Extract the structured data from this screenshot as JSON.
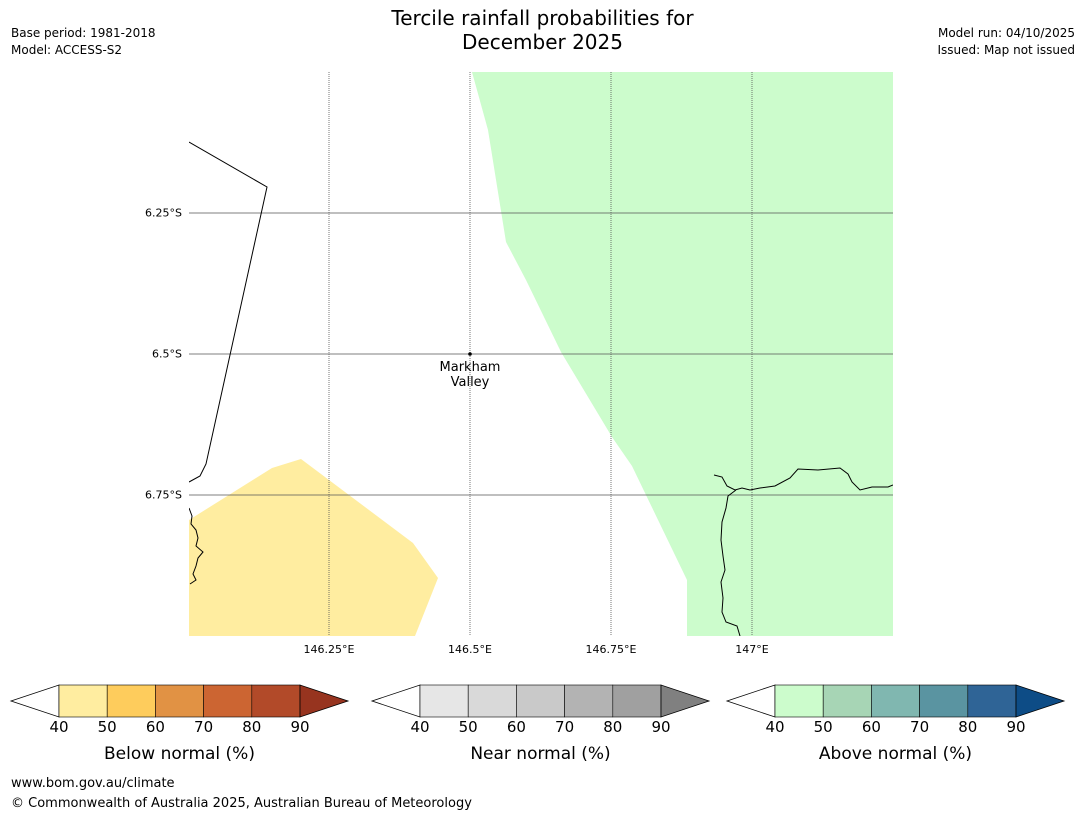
{
  "title_line1": "Tercile rainfall probabilities for",
  "title_line2": "December 2025",
  "meta_left": {
    "base_period": "Base period: 1981-2018",
    "model": "Model: ACCESS-S2"
  },
  "meta_right": {
    "model_run": "Model run: 04/10/2025",
    "issued": "Issued: Map not issued"
  },
  "map": {
    "lat_labels": [
      "6.25°S",
      "6.5°S",
      "6.75°S"
    ],
    "lon_labels": [
      "146.25°E",
      "146.5°E",
      "146.75°E",
      "147°E"
    ],
    "place": {
      "name_line1": "Markham",
      "name_line2": "Valley",
      "lat": "6.5°S",
      "lon": "146.5°E"
    },
    "shading": [
      {
        "category": "Above normal",
        "range": "40-50",
        "color": "#ccfccc"
      },
      {
        "category": "Below normal",
        "range": "40-50",
        "color": "#ffeda0"
      }
    ]
  },
  "colorbars": [
    {
      "title": "Below normal (%)",
      "ticks": [
        "40",
        "50",
        "60",
        "70",
        "80",
        "90"
      ],
      "colors": [
        "#ffffff",
        "#ffeda0",
        "#fecc5c",
        "#e19244",
        "#cc6532",
        "#b24a29",
        "#97341f"
      ]
    },
    {
      "title": "Near normal (%)",
      "ticks": [
        "40",
        "50",
        "60",
        "70",
        "80",
        "90"
      ],
      "colors": [
        "#ffffff",
        "#e6e6e6",
        "#d9d9d9",
        "#c9c9c9",
        "#b3b3b3",
        "#a0a0a0",
        "#808080"
      ]
    },
    {
      "title": "Above normal (%)",
      "ticks": [
        "40",
        "50",
        "60",
        "70",
        "80",
        "90"
      ],
      "colors": [
        "#ffffff",
        "#ccfccc",
        "#a7d5b5",
        "#80b7b0",
        "#5a94a1",
        "#2f6496",
        "#0d4c86"
      ]
    }
  ],
  "footer": {
    "url": "www.bom.gov.au/climate",
    "copyright": "© Commonwealth of Australia 2025, Australian Bureau of Meteorology"
  }
}
